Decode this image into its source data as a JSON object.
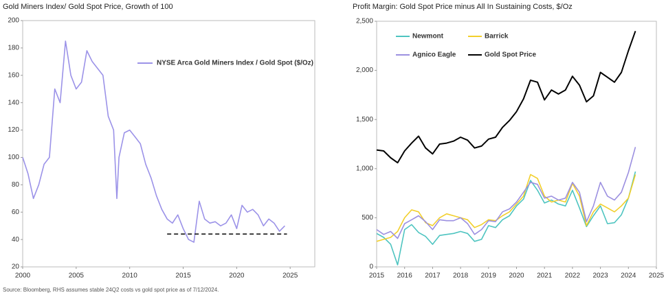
{
  "chart_data": [
    {
      "type": "line",
      "title": "Gold Miners Index/ Gold Spot Price, Growth of 100",
      "xlim": [
        2000,
        2027.3
      ],
      "xticks": [
        2000,
        2005,
        2010,
        2015,
        2020,
        2025
      ],
      "ylim": [
        20,
        200
      ],
      "yticks": [
        20,
        40,
        60,
        80,
        100,
        120,
        140,
        160,
        180,
        200
      ],
      "legend": "upper right",
      "x": [
        2000,
        2000.5,
        2001,
        2001.5,
        2002,
        2002.5,
        2003,
        2003.5,
        2004,
        2004.5,
        2005,
        2005.5,
        2006,
        2006.5,
        2007,
        2007.5,
        2008,
        2008.5,
        2008.8,
        2009,
        2009.5,
        2010,
        2010.5,
        2011,
        2011.5,
        2012,
        2012.5,
        2013,
        2013.5,
        2014,
        2014.5,
        2015,
        2015.5,
        2016,
        2016.5,
        2017,
        2017.5,
        2018,
        2018.5,
        2019,
        2019.5,
        2020,
        2020.5,
        2021,
        2021.5,
        2022,
        2022.5,
        2023,
        2023.5,
        2024,
        2024.5
      ],
      "series": [
        {
          "name": "NYSE Arca Gold Miners Index / Gold Spot ($/Oz)",
          "color": "#9b92e8",
          "values": [
            100,
            88,
            70,
            80,
            95,
            100,
            150,
            140,
            185,
            160,
            150,
            155,
            178,
            170,
            165,
            160,
            130,
            120,
            70,
            100,
            118,
            120,
            115,
            110,
            95,
            85,
            72,
            62,
            55,
            52,
            58,
            48,
            40,
            38,
            68,
            55,
            52,
            53,
            50,
            52,
            58,
            48,
            65,
            60,
            62,
            58,
            50,
            55,
            52,
            46,
            50
          ]
        }
      ],
      "reference_line": {
        "y": 44,
        "x": [
          2013.5,
          2024.7
        ]
      }
    },
    {
      "type": "line",
      "title": "Profit Margin: Gold Spot Price minus All In Sustaining Costs, $/Oz",
      "xlim": [
        2015,
        2025
      ],
      "xticks": [
        2015,
        2016,
        2017,
        2018,
        2019,
        2020,
        2021,
        2022,
        2023,
        2024,
        2025
      ],
      "ylim": [
        0,
        2500
      ],
      "yticks": [
        0,
        500,
        {
          "value": 1000,
          "label": "1,000"
        },
        {
          "value": 1500,
          "label": "1,500"
        },
        {
          "value": 2000,
          "label": "2,000"
        },
        {
          "value": 2500,
          "label": "2,500"
        }
      ],
      "legend": "upper left",
      "x": [
        2015,
        2015.25,
        2015.5,
        2015.75,
        2016,
        2016.25,
        2016.5,
        2016.75,
        2017,
        2017.25,
        2017.5,
        2017.75,
        2018,
        2018.25,
        2018.5,
        2018.75,
        2019,
        2019.25,
        2019.5,
        2019.75,
        2020,
        2020.25,
        2020.5,
        2020.75,
        2021,
        2021.25,
        2021.5,
        2021.75,
        2022,
        2022.25,
        2022.5,
        2022.75,
        2023,
        2023.25,
        2023.5,
        2023.75,
        2024,
        2024.25
      ],
      "series": [
        {
          "name": "Newmont",
          "color": "#4dc4c0",
          "values": [
            340,
            300,
            230,
            20,
            380,
            430,
            350,
            310,
            230,
            320,
            330,
            340,
            360,
            340,
            260,
            280,
            420,
            400,
            480,
            520,
            620,
            690,
            880,
            780,
            650,
            680,
            640,
            620,
            780,
            600,
            410,
            520,
            620,
            440,
            450,
            530,
            700,
            970
          ]
        },
        {
          "name": "Barrick",
          "color": "#f2cf2a",
          "values": [
            260,
            280,
            300,
            360,
            500,
            580,
            560,
            450,
            420,
            500,
            540,
            520,
            500,
            480,
            400,
            430,
            480,
            470,
            520,
            560,
            640,
            720,
            940,
            900,
            720,
            660,
            680,
            660,
            850,
            720,
            420,
            560,
            640,
            600,
            560,
            620,
            700,
            940
          ]
        },
        {
          "name": "Agnico Eagle",
          "color": "#9b8fe0",
          "values": [
            380,
            330,
            360,
            290,
            440,
            480,
            520,
            460,
            380,
            480,
            470,
            470,
            500,
            440,
            330,
            380,
            470,
            460,
            560,
            590,
            660,
            760,
            860,
            840,
            700,
            720,
            680,
            700,
            860,
            760,
            460,
            620,
            860,
            720,
            680,
            760,
            960,
            1220
          ]
        },
        {
          "name": "Gold Spot Price",
          "color": "#000000",
          "values": [
            1190,
            1180,
            1110,
            1060,
            1180,
            1260,
            1330,
            1210,
            1150,
            1250,
            1260,
            1280,
            1320,
            1290,
            1210,
            1230,
            1300,
            1320,
            1420,
            1490,
            1580,
            1710,
            1900,
            1880,
            1700,
            1800,
            1760,
            1800,
            1940,
            1850,
            1680,
            1740,
            1980,
            1930,
            1880,
            1980,
            2200,
            2400
          ]
        }
      ]
    }
  ],
  "source": "Source: Bloomberg, RHS assumes stable 24Q2 costs vs gold spot price as of 7/12/2024."
}
